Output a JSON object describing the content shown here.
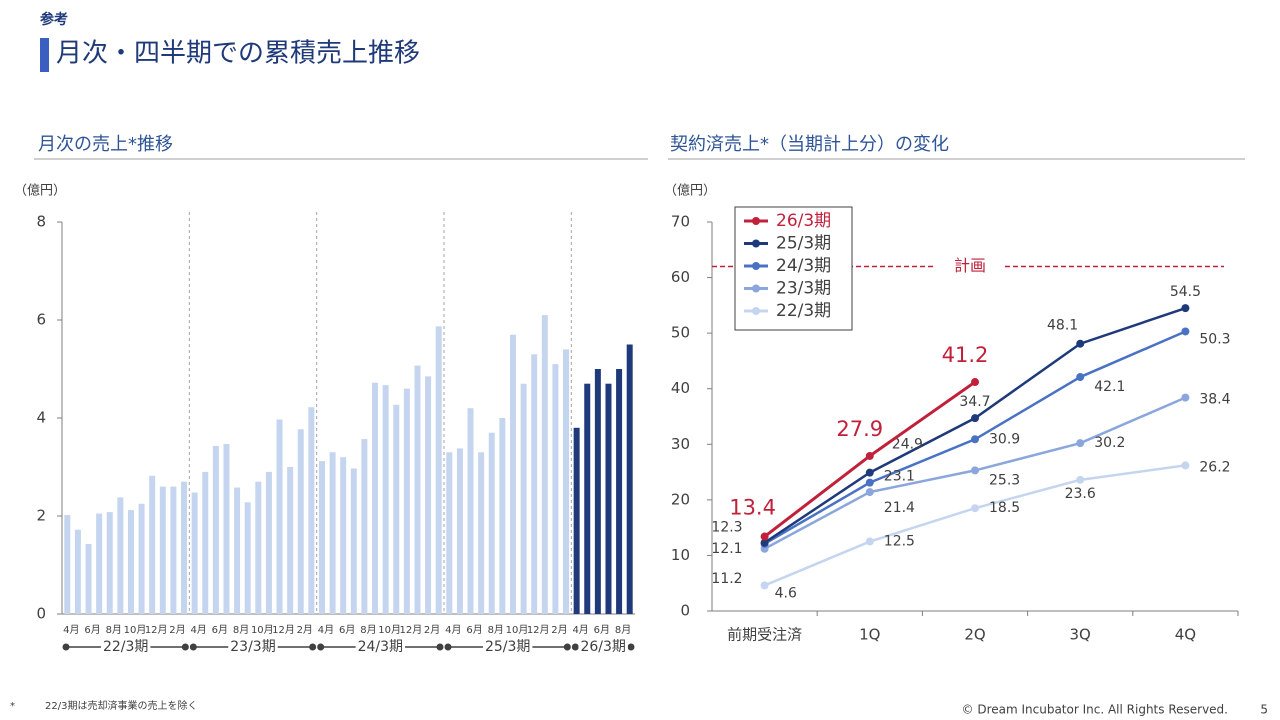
{
  "header": {
    "label": "参考",
    "title": "月次・四半期での累積売上推移"
  },
  "footnote": {
    "marker": "*",
    "text": "22/3期は売却済事業の売上を除く"
  },
  "copyright": "© Dream Incubator Inc. All Rights Reserved.",
  "page_number": "5",
  "chart_data": [
    {
      "type": "bar",
      "title": "月次の売上*推移",
      "y_label": "（億円）",
      "categories": [
        "4月",
        null,
        "6月",
        null,
        "8月",
        null,
        "10月",
        null,
        "12月",
        null,
        "2月",
        null,
        "4月",
        null,
        "6月",
        null,
        "8月",
        null,
        "10月",
        null,
        "12月",
        null,
        "2月",
        null,
        "4月",
        null,
        "6月",
        null,
        "8月",
        null,
        "10月",
        null,
        "12月",
        null,
        "2月",
        null,
        "4月",
        null,
        "6月",
        null,
        "8月",
        null,
        "10月",
        null,
        "12月",
        null,
        "2月",
        null,
        "4月",
        null,
        "6月",
        null,
        "8月",
        null
      ],
      "periods": [
        "22/3期",
        "23/3期",
        "24/3期",
        "25/3期",
        "26/3期"
      ],
      "series": [
        {
          "color": "#c5d5ef",
          "values": [
            2.02,
            1.72,
            1.43,
            2.05,
            2.08,
            2.38,
            2.12,
            2.25,
            2.82,
            2.6,
            2.6,
            2.7,
            2.48,
            2.9,
            3.43,
            3.47,
            2.58,
            2.28,
            2.7,
            2.9,
            3.97,
            3.0,
            3.77,
            4.22,
            3.12,
            3.3,
            3.2,
            2.97,
            3.57,
            4.72,
            4.67,
            4.27,
            4.6,
            5.07,
            4.85,
            5.87,
            3.3,
            3.38,
            4.2,
            3.3,
            3.7,
            4.0,
            5.7,
            4.7,
            5.3,
            6.1,
            5.1,
            5.4,
            null,
            null,
            null,
            null,
            null,
            null
          ]
        },
        {
          "color": "#1f3a7a",
          "values": [
            null,
            null,
            null,
            null,
            null,
            null,
            null,
            null,
            null,
            null,
            null,
            null,
            null,
            null,
            null,
            null,
            null,
            null,
            null,
            null,
            null,
            null,
            null,
            null,
            null,
            null,
            null,
            null,
            null,
            null,
            null,
            null,
            null,
            null,
            null,
            null,
            null,
            null,
            null,
            null,
            null,
            null,
            null,
            null,
            null,
            null,
            null,
            null,
            3.8,
            4.7,
            5.0,
            4.7,
            5.0,
            5.5
          ]
        }
      ],
      "ylim": [
        0,
        8
      ],
      "yticks": [
        0,
        2,
        4,
        6,
        8
      ]
    },
    {
      "type": "line",
      "title": "契約済売上*（当期計上分）の変化",
      "y_label": "（億円）",
      "categories": [
        "前期受注済",
        "1Q",
        "2Q",
        "3Q",
        "4Q"
      ],
      "series": [
        {
          "name": "26/3期",
          "color": "#c0203a",
          "values": [
            13.4,
            27.9,
            41.2,
            null,
            null
          ]
        },
        {
          "name": "25/3期",
          "color": "#1f3a7a",
          "values": [
            12.3,
            24.9,
            34.7,
            48.1,
            54.5
          ]
        },
        {
          "name": "24/3期",
          "color": "#4a72c4",
          "values": [
            12.1,
            23.1,
            30.9,
            42.1,
            50.3
          ]
        },
        {
          "name": "23/3期",
          "color": "#8aa6dc",
          "values": [
            11.2,
            21.4,
            25.3,
            30.2,
            38.4
          ]
        },
        {
          "name": "22/3期",
          "color": "#c5d5ef",
          "values": [
            4.6,
            12.5,
            18.5,
            23.6,
            26.2
          ]
        }
      ],
      "reference_line": {
        "value": 62,
        "label": "計画",
        "color": "#c0203a"
      },
      "ylim": [
        0,
        70
      ],
      "yticks": [
        0,
        10,
        20,
        30,
        40,
        50,
        60,
        70
      ]
    }
  ]
}
